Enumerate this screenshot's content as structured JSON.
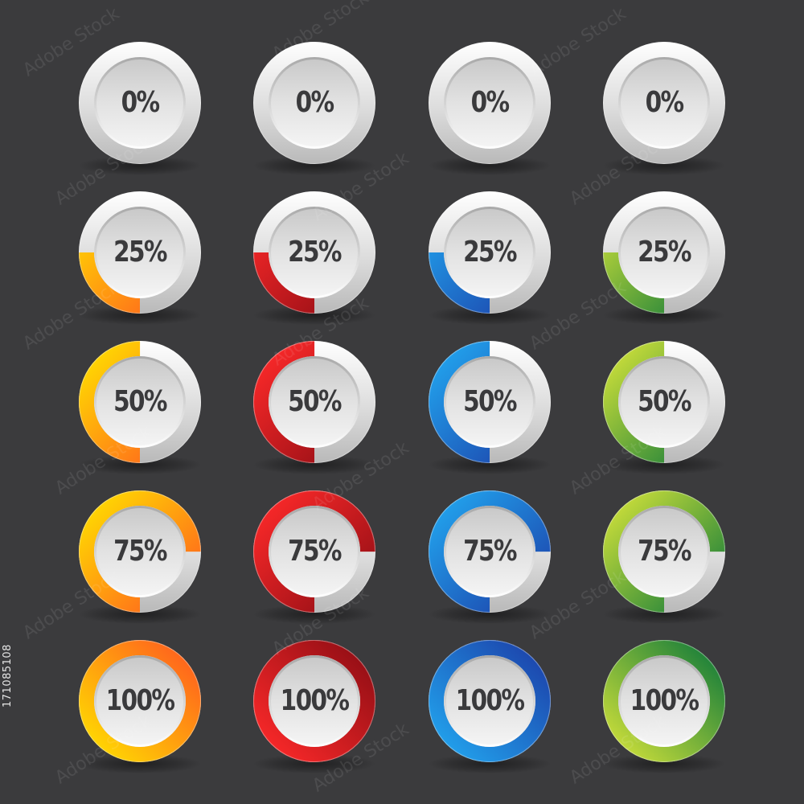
{
  "stock_id": "171085108",
  "watermark_text": "Adobe Stock",
  "colors": {
    "background": "#3b3b3d",
    "button_face": "#d9d9d9",
    "track": "#cdcdcd",
    "label": "#3a3a3c"
  },
  "themes": [
    {
      "name": "orange",
      "start": "#ffe000",
      "end": "#ff5a1f"
    },
    {
      "name": "red",
      "start": "#ff2a2a",
      "end": "#8e0d14"
    },
    {
      "name": "blue",
      "start": "#22a7f0",
      "end": "#1c3fa8"
    },
    {
      "name": "green",
      "start": "#d2e23a",
      "end": "#117a3a"
    }
  ],
  "rows": [
    {
      "label": "0%",
      "fraction": 0
    },
    {
      "label": "25%",
      "fraction": 0.25
    },
    {
      "label": "50%",
      "fraction": 0.5
    },
    {
      "label": "75%",
      "fraction": 0.75
    },
    {
      "label": "100%",
      "fraction": 1
    }
  ]
}
